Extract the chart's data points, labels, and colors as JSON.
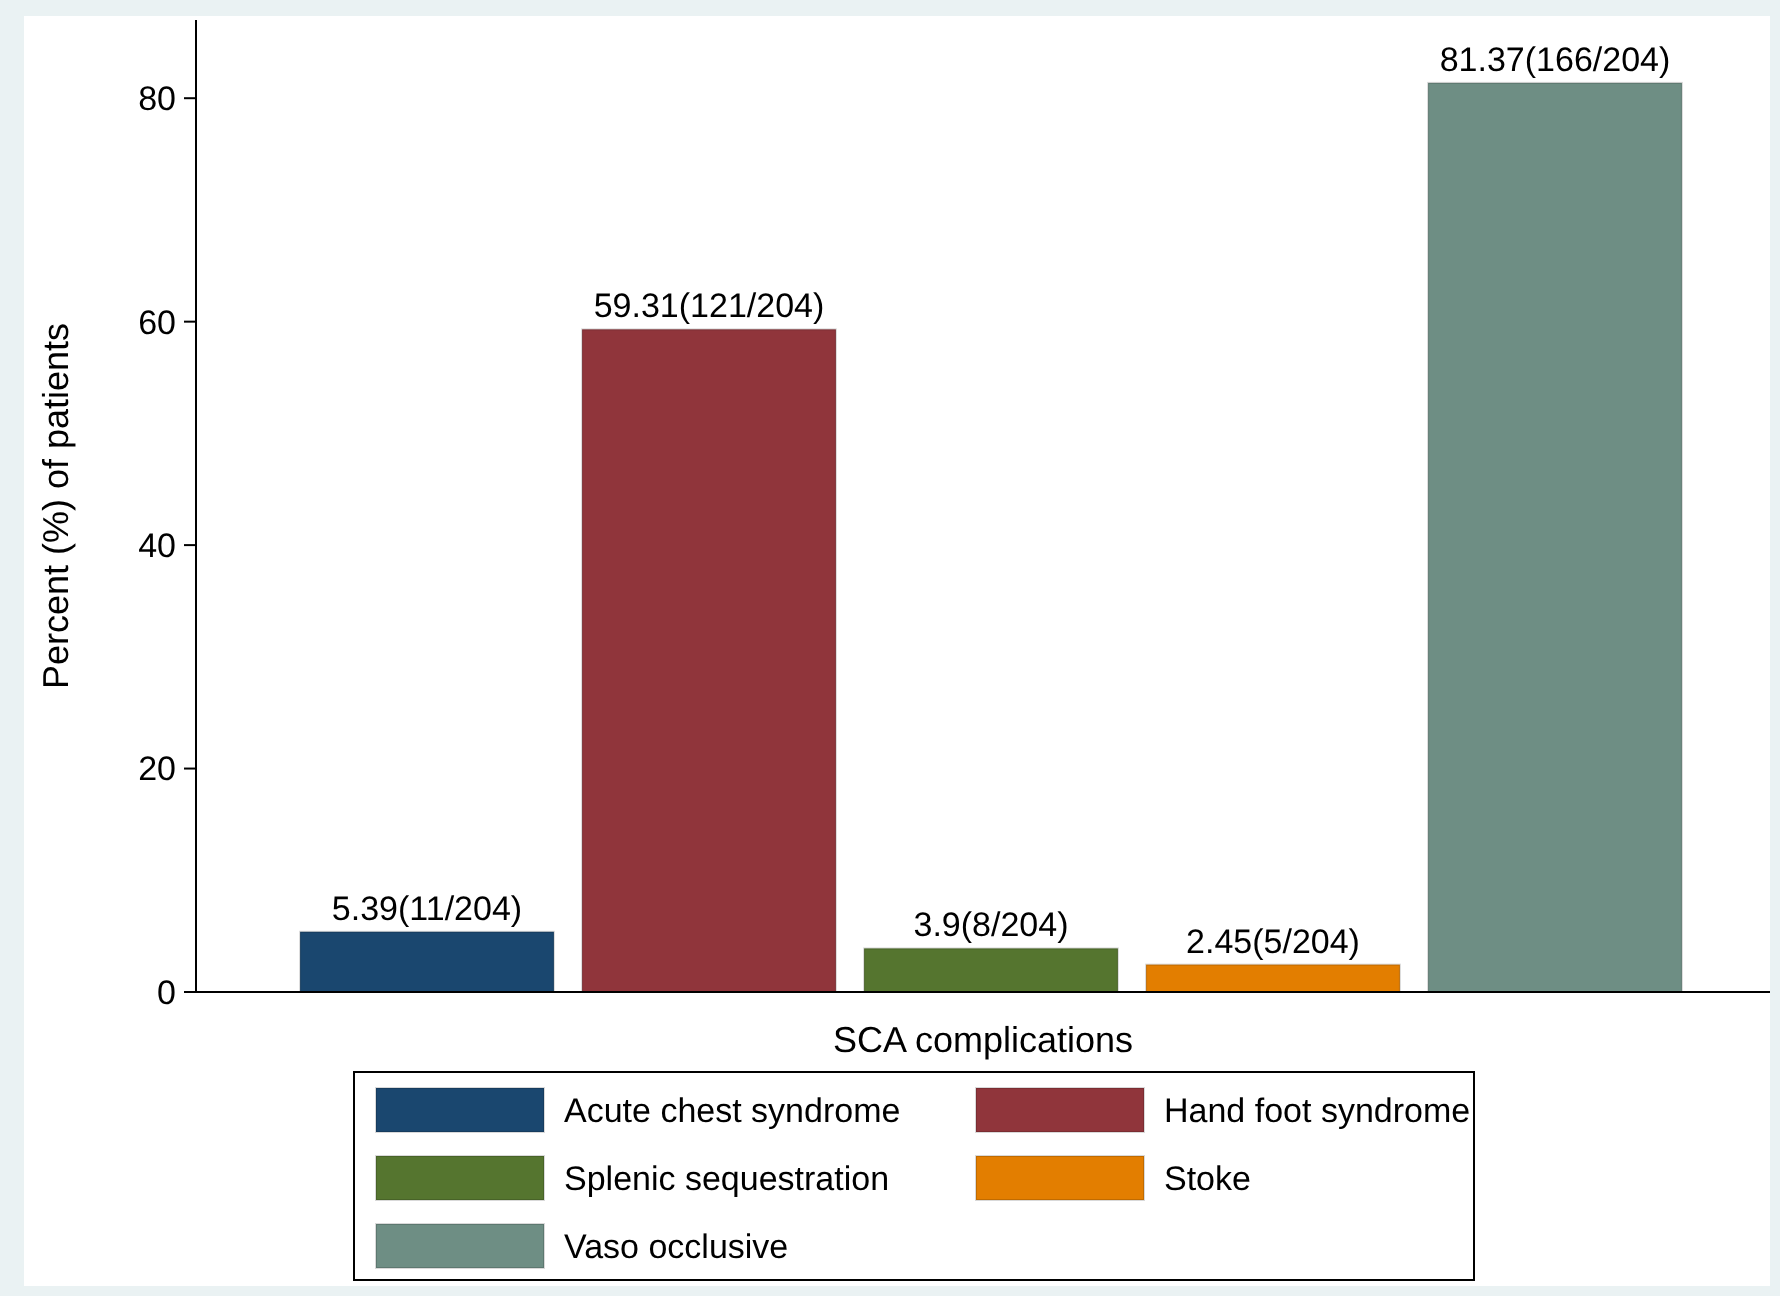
{
  "chart_data": {
    "type": "bar",
    "xlabel": "SCA complications",
    "ylabel": "Percent (%) of patients",
    "categories": [
      null,
      null,
      null,
      null,
      null
    ],
    "ylim": [
      0,
      87
    ],
    "yticks": [
      0,
      20,
      40,
      60,
      80
    ],
    "grid": false,
    "legend": "bottom",
    "series": [
      {
        "name": "Acute chest syndrome",
        "color": "#1a476f",
        "values": [
          5.39,
          null,
          null,
          null,
          null
        ],
        "value_labels": [
          "5.39(11/204)",
          null,
          null,
          null,
          null
        ]
      },
      {
        "name": "Hand foot syndrome",
        "color": "#90353b",
        "values": [
          null,
          59.31,
          null,
          null,
          null
        ],
        "value_labels": [
          null,
          "59.31(121/204)",
          null,
          null,
          null
        ]
      },
      {
        "name": "Splenic sequestration",
        "color": "#55752f",
        "values": [
          null,
          null,
          3.9,
          null,
          null
        ],
        "value_labels": [
          null,
          null,
          "3.9(8/204)",
          null,
          null
        ]
      },
      {
        "name": "Stoke",
        "color": "#e37e00",
        "values": [
          null,
          null,
          null,
          2.45,
          null
        ],
        "value_labels": [
          null,
          null,
          null,
          "2.45(5/204)",
          null
        ]
      },
      {
        "name": "Vaso occlusive",
        "color": "#6e8e84",
        "values": [
          null,
          null,
          null,
          null,
          81.37
        ],
        "value_labels": [
          null,
          null,
          null,
          null,
          "81.37(166/204)"
        ]
      }
    ]
  }
}
